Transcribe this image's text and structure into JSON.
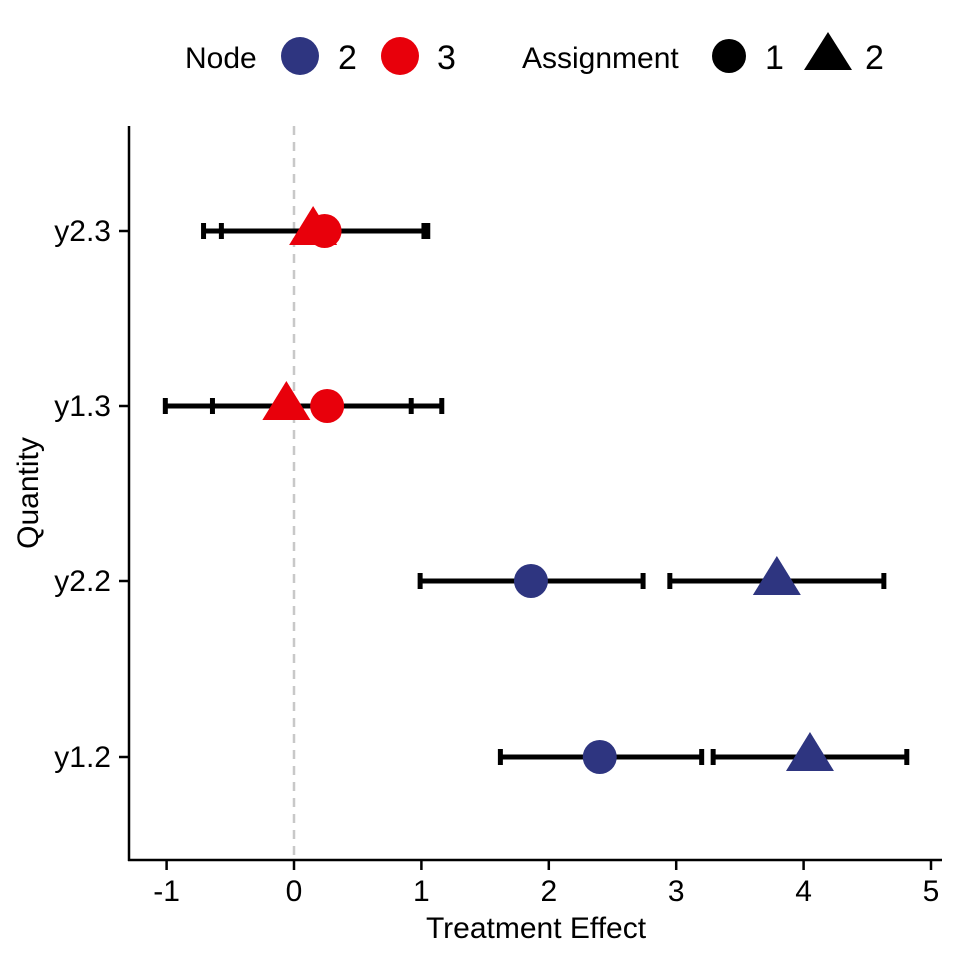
{
  "chart_data": {
    "type": "scatter",
    "title": "",
    "xlabel": "Treatment Effect",
    "ylabel": "Quantity",
    "xlim": [
      -1.3,
      5.1
    ],
    "xticks": [
      "-1",
      "0",
      "1",
      "2",
      "3",
      "4",
      "5"
    ],
    "categories": [
      "y1.2",
      "y2.2",
      "y1.3",
      "y2.3"
    ],
    "reference_line": {
      "x": 0,
      "style": "dashed",
      "color": "#c8c8c8"
    },
    "grid": false,
    "legend": {
      "placement": "top",
      "node": {
        "title": "Node",
        "entries": [
          {
            "label": "2",
            "color": "#2e3580"
          },
          {
            "label": "3",
            "color": "#e8000b"
          }
        ]
      },
      "assignment": {
        "title": "Assignment",
        "entries": [
          {
            "label": "1",
            "shape": "circle"
          },
          {
            "label": "2",
            "shape": "triangle"
          }
        ]
      }
    },
    "colors": {
      "node2": "#2e3580",
      "node3": "#e8000b",
      "errorbar": "#000000",
      "axis": "#000000"
    },
    "points": [
      {
        "category": "y1.2",
        "node": "2",
        "assignment": "1",
        "x": 2.4,
        "lo": 1.62,
        "hi": 3.2
      },
      {
        "category": "y1.2",
        "node": "2",
        "assignment": "2",
        "x": 4.05,
        "lo": 3.29,
        "hi": 4.81
      },
      {
        "category": "y2.2",
        "node": "2",
        "assignment": "1",
        "x": 1.86,
        "lo": 0.99,
        "hi": 2.74
      },
      {
        "category": "y2.2",
        "node": "2",
        "assignment": "2",
        "x": 3.79,
        "lo": 2.95,
        "hi": 4.63
      },
      {
        "category": "y1.3",
        "node": "3",
        "assignment": "1",
        "x": 0.26,
        "lo": -0.64,
        "hi": 1.16
      },
      {
        "category": "y1.3",
        "node": "3",
        "assignment": "2",
        "x": -0.06,
        "lo": -1.01,
        "hi": 0.92
      },
      {
        "category": "y2.3",
        "node": "3",
        "assignment": "1",
        "x": 0.24,
        "lo": -0.57,
        "hi": 1.05
      },
      {
        "category": "y2.3",
        "node": "3",
        "assignment": "2",
        "x": 0.15,
        "lo": -0.71,
        "hi": 1.02
      }
    ]
  }
}
